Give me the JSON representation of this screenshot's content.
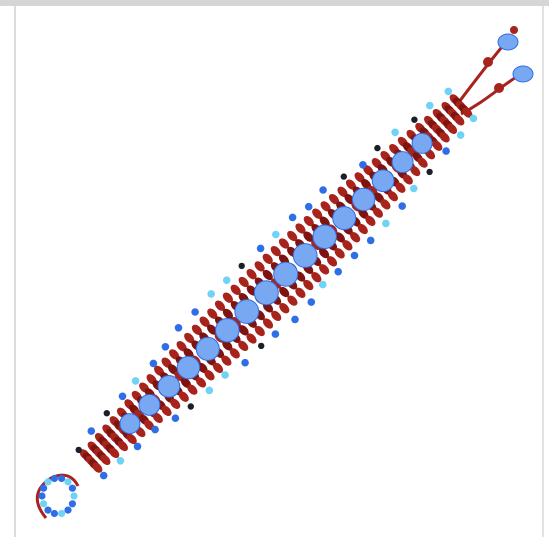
{
  "image": {
    "subject_icon": "beaded-bracelet",
    "colors": {
      "beads_red": "#a7231c",
      "beads_red_dark": "#7e1410",
      "beads_blue": "#2f6ee6",
      "beads_blue_light": "#79a8f2",
      "beads_cyan": "#6fd3f5",
      "beads_black": "#1a1f2a",
      "frame": "#d6d6d6",
      "background": "#ffffff"
    }
  }
}
